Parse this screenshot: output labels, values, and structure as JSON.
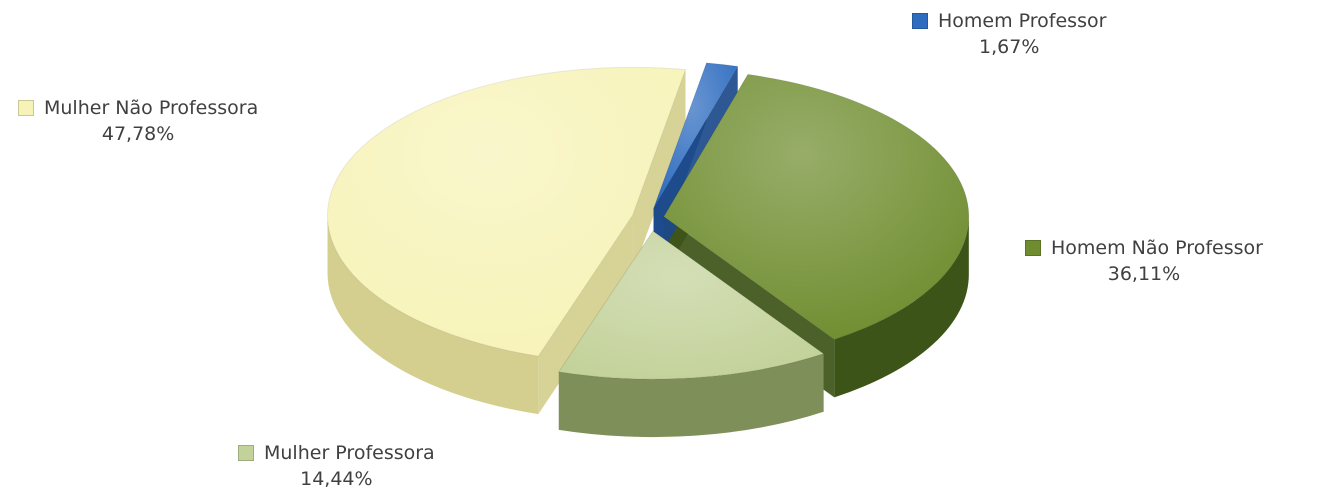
{
  "chart_data": {
    "type": "pie",
    "title": "",
    "slices": [
      {
        "name": "Homem Professor",
        "value": 1.67,
        "label": "1,67%",
        "color": "#2e6cc0",
        "side_color": "#1c4a8a"
      },
      {
        "name": "Homem Não Professor",
        "value": 36.11,
        "label": "36,11%",
        "color": "#6f8d2f",
        "side_color": "#3d5418"
      },
      {
        "name": "Mulher Professora",
        "value": 14.44,
        "label": "14,44%",
        "color": "#c3d29a",
        "side_color": "#7f8f59"
      },
      {
        "name": "Mulher Não Professora",
        "value": 47.78,
        "label": "47,78%",
        "color": "#f7f3b8",
        "side_color": "#d4cf8e"
      }
    ],
    "legend": "labels beside slices",
    "style": "3d-exploded"
  }
}
